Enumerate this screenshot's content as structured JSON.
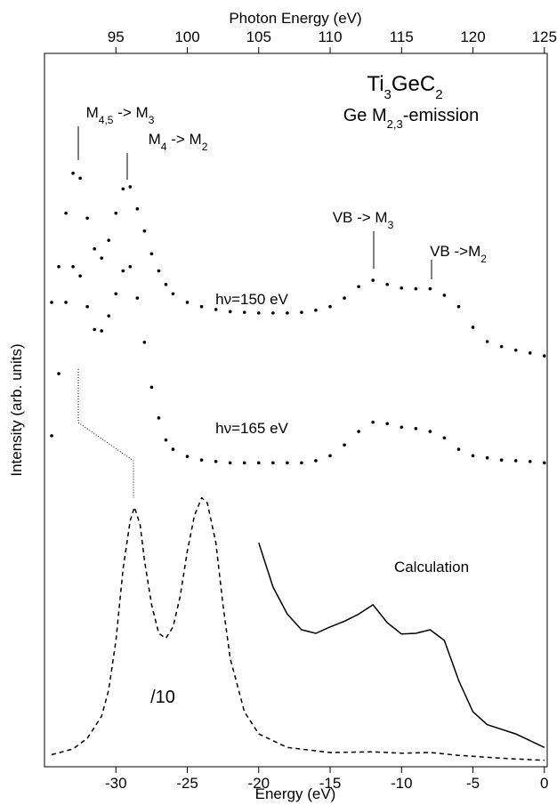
{
  "chart_data": {
    "type": "line",
    "title": [
      "Ti",
      "3",
      "GeC",
      "2"
    ],
    "subtitle": [
      "Ge M",
      "2,3",
      "-emission"
    ],
    "annotations": [
      [
        "M",
        "4,5",
        " -> M",
        "3"
      ],
      [
        "M",
        "4",
        " -> M",
        "2"
      ],
      [
        "VB -> M",
        "3"
      ],
      [
        "VB ->M",
        "2"
      ]
    ],
    "xlabel": "Energy (eV)",
    "x2label": "Photon Energy (eV)",
    "ylabel": "Intensity (arb. units)",
    "xlim": [
      -35,
      0.2
    ],
    "xticks": [
      -30,
      -25,
      -20,
      -15,
      -10,
      -5,
      0
    ],
    "x2lim": [
      90,
      125.2
    ],
    "x2ticks": [
      95,
      100,
      105,
      110,
      115,
      120,
      125
    ],
    "ylim": [
      0,
      100
    ],
    "color": "#000000",
    "series": [
      {
        "name": "hν=150 eV",
        "mode": "markers",
        "color": "#000000",
        "x": [
          -34.5,
          -34,
          -33.5,
          -33,
          -32.5,
          -32,
          -31.5,
          -31,
          -30.5,
          -30,
          -29.5,
          -29,
          -28.5,
          -28,
          -27.5,
          -27,
          -26.5,
          -26,
          -25,
          -24,
          -23,
          -22,
          -21,
          -20,
          -19,
          -18,
          -17,
          -16,
          -15,
          -14,
          -13,
          -12,
          -11,
          -10,
          -9,
          -8,
          -7,
          -6,
          -5,
          -4,
          -3,
          -2,
          -1,
          0
        ],
        "values": [
          65.1,
          70.1,
          77.6,
          83.2,
          82.5,
          76.9,
          72.6,
          71.3,
          73.8,
          77.6,
          81.0,
          81.3,
          78.2,
          75.1,
          71.9,
          69.5,
          67.6,
          66.3,
          65.1,
          64.5,
          64.1,
          63.8,
          63.7,
          63.6,
          63.6,
          63.6,
          63.7,
          64.0,
          64.5,
          65.7,
          67.3,
          68.2,
          67.6,
          67.1,
          67.0,
          67.0,
          66.1,
          64.5,
          61.6,
          59.6,
          58.9,
          58.4,
          58.0,
          57.6
        ]
      },
      {
        "name": "hν=165 eV",
        "mode": "markers",
        "color": "#000000",
        "x": [
          -34.5,
          -34,
          -33.5,
          -33,
          -32.5,
          -32,
          -31.5,
          -31,
          -30.5,
          -30,
          -29.5,
          -29,
          -28.5,
          -28,
          -27.5,
          -27,
          -26.5,
          -26,
          -25,
          -24,
          -23,
          -22,
          -21,
          -20,
          -19,
          -18,
          -17,
          -16,
          -15,
          -14,
          -13,
          -12,
          -11,
          -10,
          -9,
          -8,
          -7,
          -6,
          -5,
          -4,
          -3,
          -2,
          -1,
          0
        ],
        "values": [
          46.4,
          55.1,
          65.1,
          70.1,
          68.8,
          64.5,
          61.3,
          61.1,
          63.2,
          66.3,
          69.5,
          70.1,
          65.7,
          59.5,
          53.2,
          48.9,
          45.8,
          44.5,
          43.5,
          43.0,
          42.8,
          42.6,
          42.6,
          42.6,
          42.6,
          42.6,
          42.6,
          42.9,
          43.6,
          45.1,
          47.0,
          48.3,
          48.1,
          47.6,
          47.4,
          47.0,
          46.1,
          44.5,
          43.6,
          43.3,
          43.0,
          42.9,
          42.8,
          42.6
        ]
      },
      {
        "name": "/10",
        "mode": "dashed",
        "color": "#000000",
        "x": [
          -34.5,
          -33,
          -32,
          -31,
          -30.5,
          -30,
          -29.5,
          -29,
          -28.7,
          -28.3,
          -28,
          -27.5,
          -27,
          -26.5,
          -26,
          -25.5,
          -25,
          -24.5,
          -24,
          -23.6,
          -23,
          -22.5,
          -22,
          -21,
          -20,
          -18,
          -15,
          -12,
          -10,
          -8,
          -6,
          -3,
          0
        ],
        "values": [
          1.7,
          2.5,
          4.0,
          7.1,
          10.8,
          17.7,
          27.7,
          34.5,
          36.4,
          33.9,
          28.9,
          22.7,
          18.7,
          18.0,
          19.6,
          23.9,
          30.2,
          35.2,
          37.7,
          37.0,
          31.4,
          22.7,
          15.2,
          7.7,
          4.6,
          2.7,
          2.0,
          2.1,
          1.9,
          2.0,
          1.6,
          1.2,
          0.9
        ]
      },
      {
        "name": "Calculation",
        "mode": "solid",
        "color": "#000000",
        "x": [
          -20,
          -19,
          -18,
          -17,
          -16,
          -15,
          -14,
          -13,
          -12,
          -11,
          -10,
          -9,
          -8,
          -7,
          -6,
          -5,
          -4,
          -2,
          0
        ],
        "values": [
          31.4,
          25.2,
          21.4,
          19.2,
          18.7,
          19.6,
          20.4,
          21.4,
          22.7,
          20.2,
          18.6,
          18.7,
          19.2,
          17.7,
          12.1,
          7.7,
          5.9,
          4.6,
          2.7
        ]
      }
    ]
  }
}
